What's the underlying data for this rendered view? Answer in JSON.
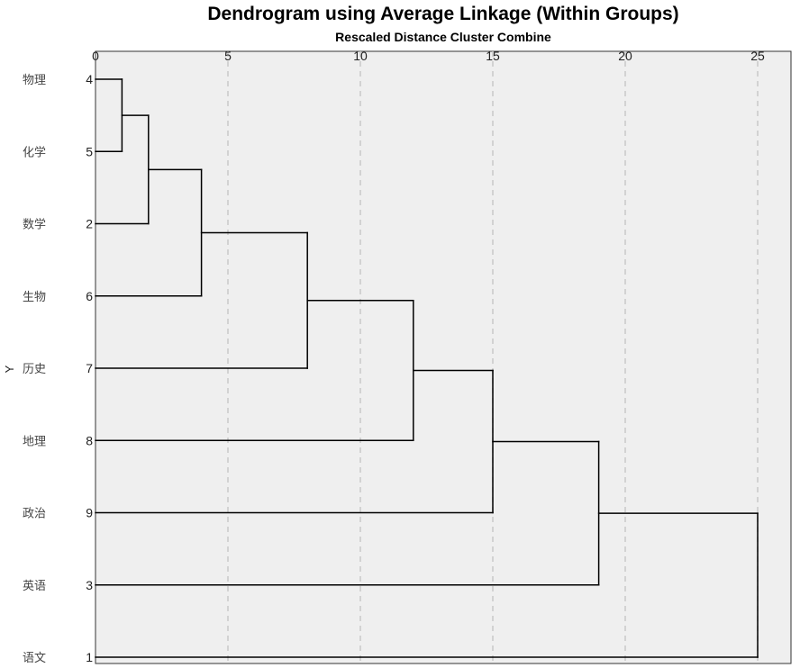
{
  "chart_data": {
    "type": "dendrogram",
    "title": "Dendrogram using Average Linkage (Within Groups)",
    "xlabel": "Rescaled Distance Cluster Combine",
    "ylabel": "Y",
    "xlim": [
      0,
      25
    ],
    "xticks": [
      0,
      5,
      10,
      15,
      20,
      25
    ],
    "grid": true,
    "cases": [
      {
        "name": "物理",
        "id": "4"
      },
      {
        "name": "化学",
        "id": "5"
      },
      {
        "name": "数学",
        "id": "2"
      },
      {
        "name": "生物",
        "id": "6"
      },
      {
        "name": "历史",
        "id": "7"
      },
      {
        "name": "地理",
        "id": "8"
      },
      {
        "name": "政治",
        "id": "9"
      },
      {
        "name": "英语",
        "id": "3"
      },
      {
        "name": "语文",
        "id": "1"
      }
    ],
    "merges": [
      {
        "a": "物理",
        "b": "化学",
        "distance": 1
      },
      {
        "a": [
          "物理",
          "化学"
        ],
        "b": "数学",
        "distance": 2
      },
      {
        "a": [
          "物理",
          "化学",
          "数学"
        ],
        "b": "生物",
        "distance": 4
      },
      {
        "a": [
          "物理",
          "化学",
          "数学",
          "生物"
        ],
        "b": "历史",
        "distance": 8
      },
      {
        "a": [
          "物理",
          "化学",
          "数学",
          "生物",
          "历史"
        ],
        "b": "地理",
        "distance": 12
      },
      {
        "a": [
          "物理",
          "化学",
          "数学",
          "生物",
          "历史",
          "地理"
        ],
        "b": "政治",
        "distance": 15
      },
      {
        "a": [
          "物理",
          "化学",
          "数学",
          "生物",
          "历史",
          "地理",
          "政治"
        ],
        "b": "英语",
        "distance": 19
      },
      {
        "a": [
          "物理",
          "化学",
          "数学",
          "生物",
          "历史",
          "地理",
          "政治",
          "英语"
        ],
        "b": "语文",
        "distance": 25
      }
    ],
    "colors": {
      "plot_background": "#efefef",
      "frame": "#333333",
      "grid": "#c8c8c8",
      "branch": "#000000"
    }
  }
}
